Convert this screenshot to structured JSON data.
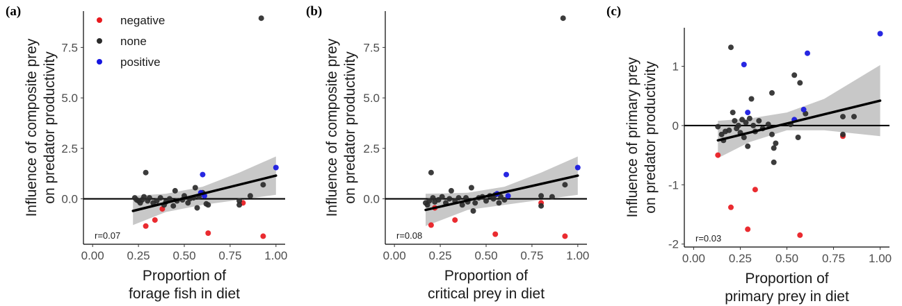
{
  "colors": {
    "negative": "#e8191e",
    "none": "#2b2b2b",
    "positive": "#1515e0",
    "band": "#c8c8c8",
    "fit": "#000000"
  },
  "chart_data": [
    {
      "type": "scatter",
      "panel_label": "(a)",
      "xlabel_lines": [
        "Proportion of",
        "forage fish in diet"
      ],
      "ylabel_lines": [
        "Influence of composite prey",
        "on predator productivity"
      ],
      "xlim": [
        -0.05,
        1.05
      ],
      "ylim": [
        -2.25,
        9.3
      ],
      "xticks": [
        0,
        0.25,
        0.5,
        0.75,
        1
      ],
      "xtick_labels": [
        "0.00",
        "0.25",
        "0.50",
        "0.75",
        "1.00"
      ],
      "yticks": [
        0,
        2.5,
        5,
        7.5
      ],
      "ytick_labels": [
        "0.0",
        "2.5",
        "5.0",
        "7.5"
      ],
      "annotation": "r=0.07",
      "legend": {
        "position": "top-left",
        "entries": [
          {
            "label": "negative",
            "key": "negative"
          },
          {
            "label": "none",
            "key": "none"
          },
          {
            "label": "positive",
            "key": "positive"
          }
        ]
      },
      "hline": 0,
      "fit": {
        "x": [
          0.22,
          1.0
        ],
        "y": [
          -0.6,
          1.15
        ]
      },
      "band": {
        "x": [
          0.22,
          0.4,
          0.6,
          0.8,
          1.0
        ],
        "upper": [
          0.15,
          0.25,
          0.6,
          1.3,
          2.1
        ],
        "lower": [
          -1.3,
          -0.65,
          -0.3,
          -0.05,
          0.2
        ]
      },
      "series": [
        {
          "name": "negative",
          "color_key": "negative",
          "points": [
            [
              0.29,
              -1.35
            ],
            [
              0.34,
              -1.05
            ],
            [
              0.38,
              -0.5
            ],
            [
              0.63,
              -1.7
            ],
            [
              0.82,
              -0.2
            ],
            [
              0.93,
              -1.85
            ]
          ]
        },
        {
          "name": "none",
          "color_key": "none",
          "points": [
            [
              0.23,
              0.05
            ],
            [
              0.24,
              -0.05
            ],
            [
              0.25,
              -0.1
            ],
            [
              0.26,
              -0.2
            ],
            [
              0.27,
              -0.05
            ],
            [
              0.28,
              0.1
            ],
            [
              0.29,
              1.3
            ],
            [
              0.3,
              -0.1
            ],
            [
              0.31,
              0.05
            ],
            [
              0.33,
              -0.2
            ],
            [
              0.35,
              -0.1
            ],
            [
              0.37,
              0.05
            ],
            [
              0.39,
              -0.3
            ],
            [
              0.4,
              -0.15
            ],
            [
              0.42,
              0.0
            ],
            [
              0.44,
              -0.35
            ],
            [
              0.45,
              0.4
            ],
            [
              0.46,
              -0.1
            ],
            [
              0.49,
              -0.05
            ],
            [
              0.5,
              0.15
            ],
            [
              0.52,
              -0.2
            ],
            [
              0.53,
              0.0
            ],
            [
              0.55,
              0.05
            ],
            [
              0.56,
              0.55
            ],
            [
              0.57,
              -0.45
            ],
            [
              0.58,
              0.1
            ],
            [
              0.6,
              0.3
            ],
            [
              0.62,
              -0.25
            ],
            [
              0.63,
              -0.3
            ],
            [
              0.8,
              -0.3
            ],
            [
              0.8,
              -0.1
            ],
            [
              0.86,
              0.15
            ],
            [
              0.92,
              8.95
            ],
            [
              0.93,
              0.7
            ]
          ]
        },
        {
          "name": "positive",
          "color_key": "positive",
          "points": [
            [
              0.59,
              0.3
            ],
            [
              0.6,
              1.2
            ],
            [
              0.61,
              0.15
            ],
            [
              1.0,
              1.55
            ]
          ]
        }
      ]
    },
    {
      "type": "scatter",
      "panel_label": "(b)",
      "xlabel_lines": [
        "Proportion of",
        "critical prey in diet"
      ],
      "ylabel_lines": [
        "Influence of composite prey",
        "on predator productivity"
      ],
      "xlim": [
        -0.05,
        1.05
      ],
      "ylim": [
        -2.25,
        9.3
      ],
      "xticks": [
        0,
        0.25,
        0.5,
        0.75,
        1
      ],
      "xtick_labels": [
        "0.00",
        "0.25",
        "0.50",
        "0.75",
        "1.00"
      ],
      "yticks": [
        0,
        2.5,
        5,
        7.5
      ],
      "ytick_labels": [
        "0.0",
        "2.5",
        "5.0",
        "7.5"
      ],
      "annotation": "r=0.08",
      "hline": 0,
      "fit": {
        "x": [
          0.17,
          1.0
        ],
        "y": [
          -0.55,
          1.15
        ]
      },
      "band": {
        "x": [
          0.17,
          0.4,
          0.6,
          0.8,
          1.0
        ],
        "upper": [
          0.25,
          0.3,
          0.6,
          1.3,
          2.1
        ],
        "lower": [
          -1.35,
          -0.55,
          -0.3,
          -0.05,
          0.2
        ]
      },
      "series": [
        {
          "name": "negative",
          "color_key": "negative",
          "points": [
            [
              0.2,
              -1.3
            ],
            [
              0.22,
              -0.45
            ],
            [
              0.33,
              -1.05
            ],
            [
              0.55,
              -1.75
            ],
            [
              0.8,
              -0.2
            ],
            [
              0.93,
              -1.85
            ]
          ]
        },
        {
          "name": "none",
          "color_key": "none",
          "points": [
            [
              0.17,
              -0.2
            ],
            [
              0.18,
              -0.3
            ],
            [
              0.19,
              -0.1
            ],
            [
              0.2,
              1.3
            ],
            [
              0.21,
              0.05
            ],
            [
              0.22,
              -0.15
            ],
            [
              0.24,
              -0.05
            ],
            [
              0.26,
              0.1
            ],
            [
              0.28,
              -0.2
            ],
            [
              0.3,
              0.0
            ],
            [
              0.31,
              0.4
            ],
            [
              0.33,
              -0.1
            ],
            [
              0.35,
              0.05
            ],
            [
              0.37,
              -0.3
            ],
            [
              0.39,
              0.05
            ],
            [
              0.4,
              -0.15
            ],
            [
              0.42,
              0.55
            ],
            [
              0.43,
              -0.6
            ],
            [
              0.44,
              -0.2
            ],
            [
              0.46,
              0.05
            ],
            [
              0.48,
              0.1
            ],
            [
              0.5,
              -0.1
            ],
            [
              0.52,
              0.15
            ],
            [
              0.54,
              0.0
            ],
            [
              0.55,
              0.2
            ],
            [
              0.57,
              -0.2
            ],
            [
              0.58,
              0.1
            ],
            [
              0.6,
              -0.05
            ],
            [
              0.8,
              0.15
            ],
            [
              0.8,
              -0.35
            ],
            [
              0.86,
              0.1
            ],
            [
              0.92,
              8.95
            ],
            [
              0.93,
              0.7
            ]
          ]
        },
        {
          "name": "positive",
          "color_key": "positive",
          "points": [
            [
              0.56,
              0.25
            ],
            [
              0.61,
              1.2
            ],
            [
              0.62,
              0.15
            ],
            [
              1.0,
              1.55
            ]
          ]
        }
      ]
    },
    {
      "type": "scatter",
      "panel_label": "(c)",
      "xlabel_lines": [
        "Proportion of",
        "primary prey in diet"
      ],
      "ylabel_lines": [
        "Influence of primary prey",
        "on predator productivity"
      ],
      "xlim": [
        -0.05,
        1.05
      ],
      "ylim": [
        -2.05,
        1.65
      ],
      "xticks": [
        0,
        0.25,
        0.5,
        0.75,
        1
      ],
      "xtick_labels": [
        "0.00",
        "0.25",
        "0.50",
        "0.75",
        "1.00"
      ],
      "yticks": [
        -2,
        -1,
        0,
        1
      ],
      "ytick_labels": [
        "-2",
        "-1",
        "0",
        "1"
      ],
      "annotation": "r=0.03",
      "hline": 0,
      "fit": {
        "x": [
          0.13,
          1.0
        ],
        "y": [
          -0.25,
          0.42
        ]
      },
      "band": {
        "x": [
          0.13,
          0.3,
          0.5,
          0.7,
          1.0
        ],
        "upper": [
          0.08,
          0.12,
          0.22,
          0.45,
          1.02
        ],
        "lower": [
          -0.55,
          -0.28,
          -0.08,
          -0.08,
          -0.18
        ]
      },
      "series": [
        {
          "name": "negative",
          "color_key": "negative",
          "points": [
            [
              0.13,
              -0.5
            ],
            [
              0.2,
              -1.38
            ],
            [
              0.29,
              -1.75
            ],
            [
              0.33,
              -1.08
            ],
            [
              0.57,
              -1.85
            ],
            [
              0.8,
              -0.18
            ]
          ]
        },
        {
          "name": "none",
          "color_key": "none",
          "points": [
            [
              0.13,
              -0.02
            ],
            [
              0.15,
              -0.15
            ],
            [
              0.16,
              -0.25
            ],
            [
              0.17,
              -0.1
            ],
            [
              0.19,
              -0.08
            ],
            [
              0.2,
              1.32
            ],
            [
              0.21,
              0.22
            ],
            [
              0.22,
              0.08
            ],
            [
              0.23,
              -0.05
            ],
            [
              0.24,
              0.0
            ],
            [
              0.25,
              -0.12
            ],
            [
              0.26,
              0.1
            ],
            [
              0.27,
              -0.2
            ],
            [
              0.28,
              0.05
            ],
            [
              0.29,
              -0.35
            ],
            [
              0.3,
              0.12
            ],
            [
              0.31,
              0.45
            ],
            [
              0.32,
              0.0
            ],
            [
              0.33,
              -0.1
            ],
            [
              0.35,
              0.08
            ],
            [
              0.37,
              -0.05
            ],
            [
              0.4,
              0.02
            ],
            [
              0.42,
              -0.15
            ],
            [
              0.42,
              0.55
            ],
            [
              0.43,
              -0.38
            ],
            [
              0.43,
              -0.62
            ],
            [
              0.44,
              -0.3
            ],
            [
              0.52,
              0.02
            ],
            [
              0.54,
              0.85
            ],
            [
              0.56,
              -0.2
            ],
            [
              0.57,
              0.72
            ],
            [
              0.6,
              0.2
            ],
            [
              0.8,
              -0.15
            ],
            [
              0.8,
              0.15
            ],
            [
              0.86,
              0.15
            ]
          ]
        },
        {
          "name": "positive",
          "color_key": "positive",
          "points": [
            [
              0.27,
              1.03
            ],
            [
              0.29,
              0.22
            ],
            [
              0.54,
              0.1
            ],
            [
              0.59,
              0.27
            ],
            [
              0.61,
              1.22
            ],
            [
              1.0,
              1.55
            ]
          ]
        }
      ]
    }
  ]
}
